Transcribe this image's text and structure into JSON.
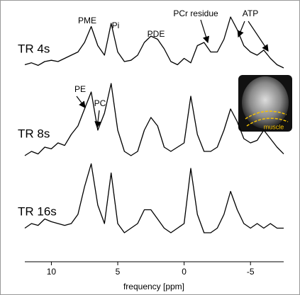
{
  "chart_data": {
    "type": "line",
    "xlabel": "frequency [ppm]",
    "x": [
      12,
      11.5,
      11,
      10.5,
      10,
      9.5,
      9,
      8.5,
      8,
      7.5,
      7,
      6.5,
      6,
      5.5,
      5,
      4.5,
      4,
      3.5,
      3,
      2.5,
      2,
      1.5,
      1,
      0.5,
      0,
      -0.5,
      -1,
      -1.5,
      -2,
      -2.5,
      -3,
      -3.5,
      -4,
      -4.5,
      -5,
      -5.5,
      -6,
      -6.5,
      -7,
      -7.5
    ],
    "xlim": [
      12,
      -7.5
    ],
    "xticks": [
      10,
      5,
      0,
      -5
    ],
    "ylim": [
      0,
      100
    ],
    "color": "#000000",
    "series": [
      {
        "name": "TR 4s",
        "values": [
          15,
          18,
          14,
          20,
          22,
          20,
          25,
          30,
          35,
          50,
          75,
          45,
          30,
          80,
          35,
          20,
          22,
          30,
          50,
          60,
          55,
          40,
          20,
          15,
          25,
          18,
          45,
          50,
          35,
          35,
          55,
          90,
          70,
          45,
          35,
          30,
          38,
          25,
          15,
          10
        ]
      },
      {
        "name": "TR 8s",
        "values": [
          10,
          15,
          12,
          20,
          18,
          25,
          22,
          35,
          45,
          65,
          85,
          40,
          60,
          95,
          40,
          15,
          10,
          15,
          40,
          55,
          45,
          20,
          15,
          20,
          25,
          80,
          35,
          15,
          15,
          20,
          40,
          65,
          50,
          30,
          25,
          28,
          40,
          30,
          20,
          12
        ]
      },
      {
        "name": "TR 16s",
        "values": [
          25,
          30,
          28,
          35,
          32,
          30,
          28,
          30,
          40,
          70,
          95,
          50,
          30,
          85,
          30,
          20,
          25,
          30,
          45,
          45,
          35,
          25,
          20,
          25,
          30,
          90,
          40,
          20,
          20,
          25,
          40,
          65,
          45,
          30,
          25,
          30,
          25,
          30,
          25,
          25
        ]
      }
    ],
    "annotations": [
      "PME",
      "Pi",
      "PDE",
      "PCr residue",
      "ATP",
      "PE",
      "PC",
      "muscle"
    ]
  }
}
